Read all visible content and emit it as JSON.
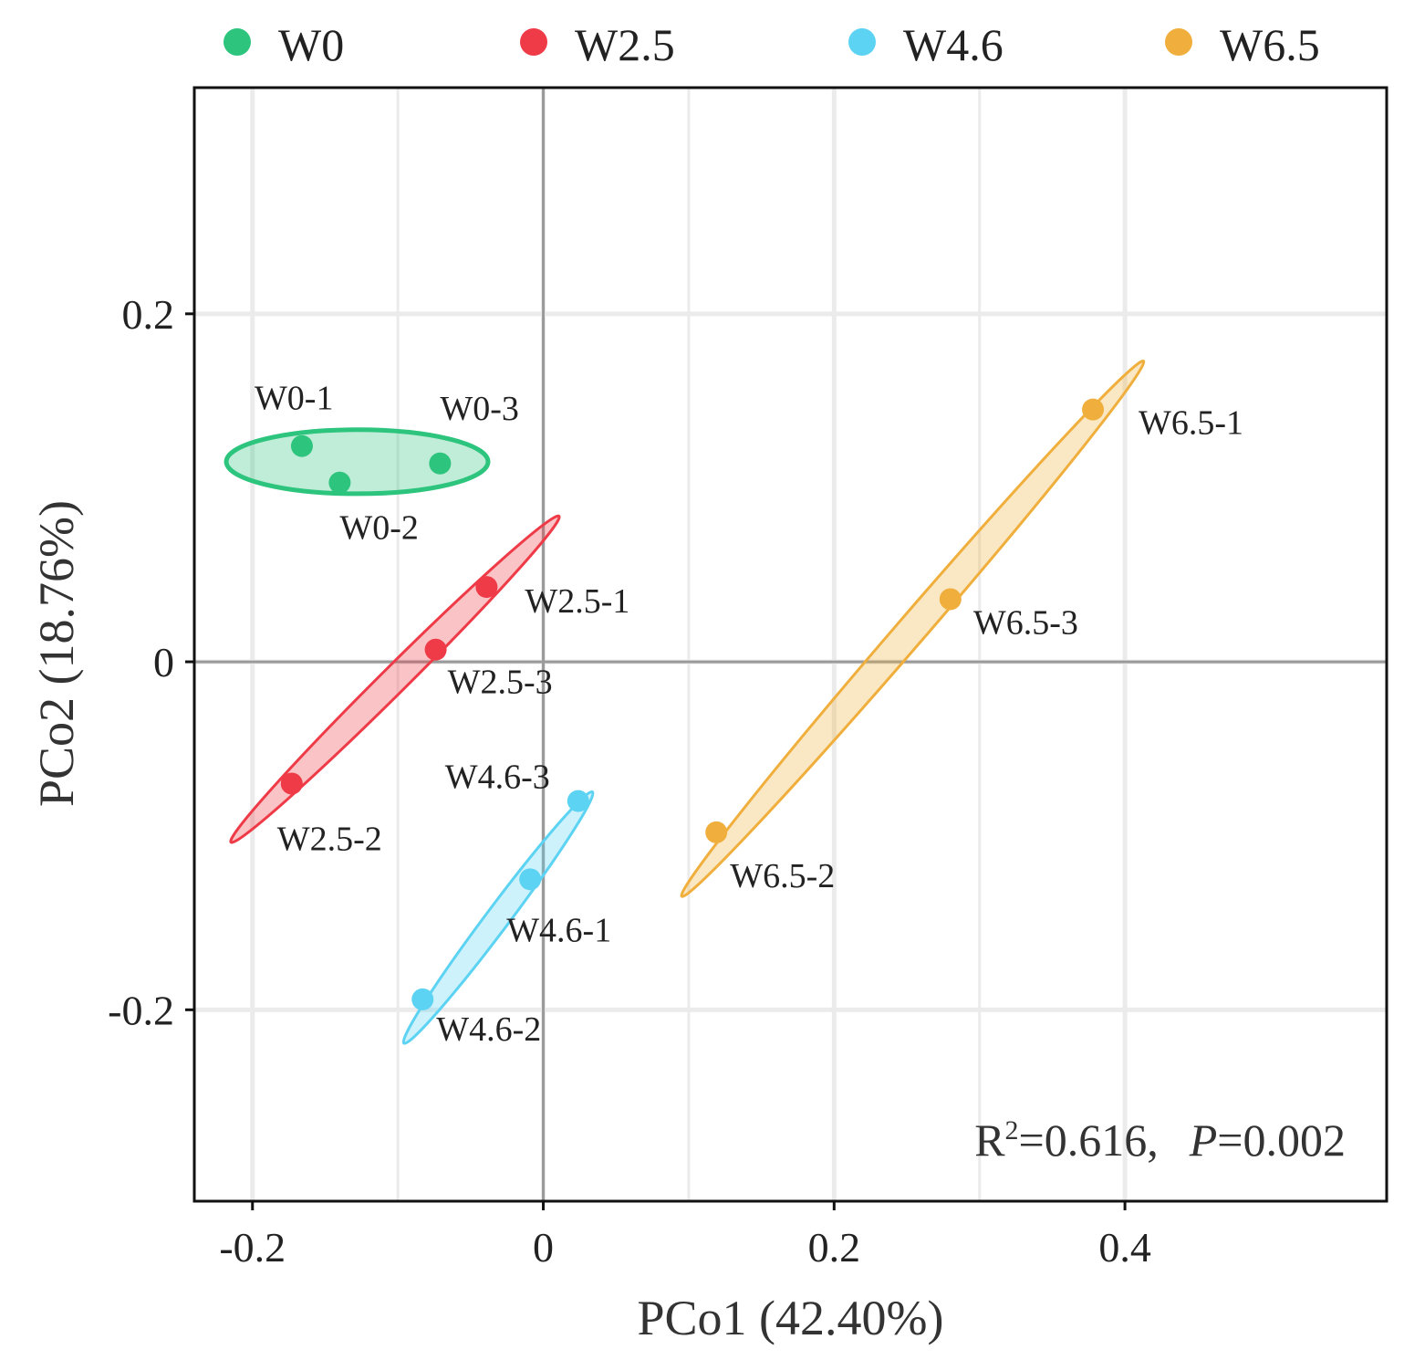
{
  "chart_data": {
    "type": "scatter",
    "xlabel": "PCo1 (42.40%)",
    "ylabel": "PCo2 (18.76%)",
    "xlim": [
      -0.24,
      0.58
    ],
    "ylim": [
      -0.31,
      0.33
    ],
    "xticks": [
      {
        "value": -0.2,
        "label": "-0.2"
      },
      {
        "value": 0,
        "label": "0"
      },
      {
        "value": 0.2,
        "label": "0.2"
      },
      {
        "value": 0.4,
        "label": "0.4"
      }
    ],
    "yticks": [
      {
        "value": 0.2,
        "label": "0.2"
      },
      {
        "value": 0,
        "label": "0"
      },
      {
        "value": -0.2,
        "label": "-0.2"
      }
    ],
    "grid": true,
    "legend_position": "top",
    "series": [
      {
        "name": "W0",
        "color": "#2DC57E",
        "points": [
          {
            "label": "W0-1",
            "x": -0.166,
            "y": 0.124
          },
          {
            "label": "W0-2",
            "x": -0.14,
            "y": 0.103
          },
          {
            "label": "W0-3",
            "x": -0.071,
            "y": 0.114
          }
        ]
      },
      {
        "name": "W2.5",
        "color": "#EE3B47",
        "points": [
          {
            "label": "W2.5-1",
            "x": -0.039,
            "y": 0.043
          },
          {
            "label": "W2.5-2",
            "x": -0.173,
            "y": -0.07
          },
          {
            "label": "W2.5-3",
            "x": -0.074,
            "y": 0.007
          }
        ]
      },
      {
        "name": "W4.6",
        "color": "#5DD3F3",
        "points": [
          {
            "label": "W4.6-1",
            "x": -0.009,
            "y": -0.125
          },
          {
            "label": "W4.6-2",
            "x": -0.083,
            "y": -0.194
          },
          {
            "label": "W4.6-3",
            "x": 0.024,
            "y": -0.08
          }
        ]
      },
      {
        "name": "W6.5",
        "color": "#F0AF3C",
        "points": [
          {
            "label": "W6.5-1",
            "x": 0.378,
            "y": 0.145
          },
          {
            "label": "W6.5-2",
            "x": 0.119,
            "y": -0.098
          },
          {
            "label": "W6.5-3",
            "x": 0.28,
            "y": 0.036
          }
        ]
      }
    ],
    "ellipses": [
      {
        "series": "W0",
        "cx": -0.128,
        "cy": 0.115,
        "rx": 0.09,
        "ry": 0.022,
        "angle_deg": 0
      },
      {
        "series": "W2.5",
        "cx": -0.102,
        "cy": -0.01,
        "rx": 0.159,
        "ry": 0.009,
        "angle_deg": 44.8
      },
      {
        "series": "W4.6",
        "cx": -0.031,
        "cy": -0.147,
        "rx": 0.108,
        "ry": 0.008,
        "angle_deg": 53.1
      },
      {
        "series": "W6.5",
        "cx": 0.254,
        "cy": 0.019,
        "rx": 0.243,
        "ry": 0.01,
        "angle_deg": 49.2
      }
    ],
    "annotation": {
      "r2_prefix": "R",
      "r2_sup": "2",
      "r2_value": "=0.616,",
      "p_label": "P",
      "p_value": "=0.002"
    }
  }
}
